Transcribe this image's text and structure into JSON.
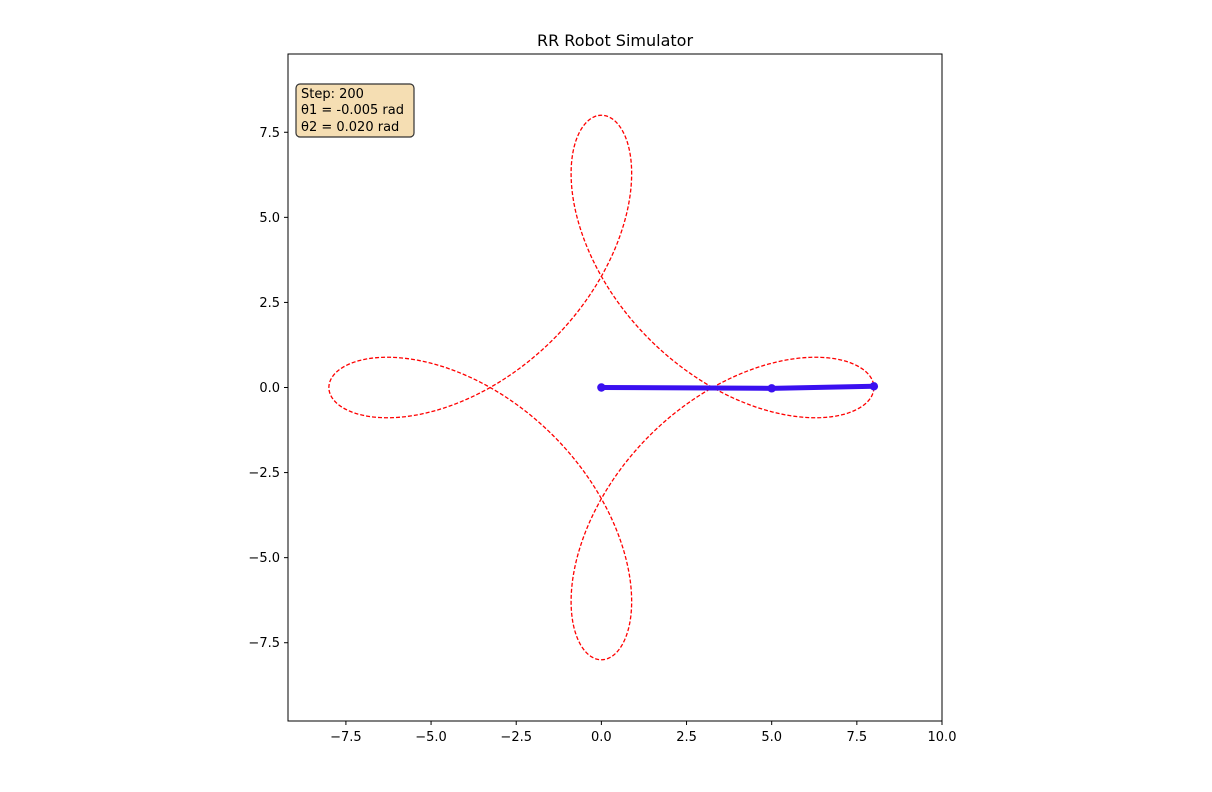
{
  "chart_data": {
    "type": "line",
    "title": "RR Robot Simulator",
    "xlabel": "",
    "ylabel": "",
    "xlim": [
      -9.2,
      10
    ],
    "ylim": [
      -9.8,
      9.8
    ],
    "grid": false,
    "x_ticks": [
      -7.5,
      -5.0,
      -2.5,
      0.0,
      2.5,
      5.0,
      7.5,
      10.0
    ],
    "x_tick_labels": [
      "−7.5",
      "−5.0",
      "−2.5",
      "0.0",
      "2.5",
      "5.0",
      "7.5",
      "10.0"
    ],
    "y_ticks": [
      7.5,
      5.0,
      2.5,
      0.0,
      -2.5,
      -5.0,
      -7.5
    ],
    "y_tick_labels": [
      "7.5",
      "5.0",
      "2.5",
      "0.0",
      "−2.5",
      "−5.0",
      "−7.5"
    ],
    "series": [
      {
        "style": "dashed",
        "color": "#ff0000",
        "curve": {
          "kind": "two-link-trajectory",
          "link1_length": 5,
          "link2_length": 3,
          "theta1_per_step": 1,
          "theta2_per_step": -4,
          "samples": 721
        }
      },
      {
        "style": "solid",
        "color": "#3a10f0",
        "marker": "circle",
        "x": [
          0.0,
          5.0,
          8.0
        ],
        "y": [
          0.0,
          -0.025,
          0.035
        ]
      }
    ]
  },
  "info_box": {
    "lines": [
      "Step: 200",
      "θ1 = -0.005 rad",
      "θ2 = 0.020 rad"
    ],
    "background": "#f5deb3",
    "border": "#333333"
  }
}
